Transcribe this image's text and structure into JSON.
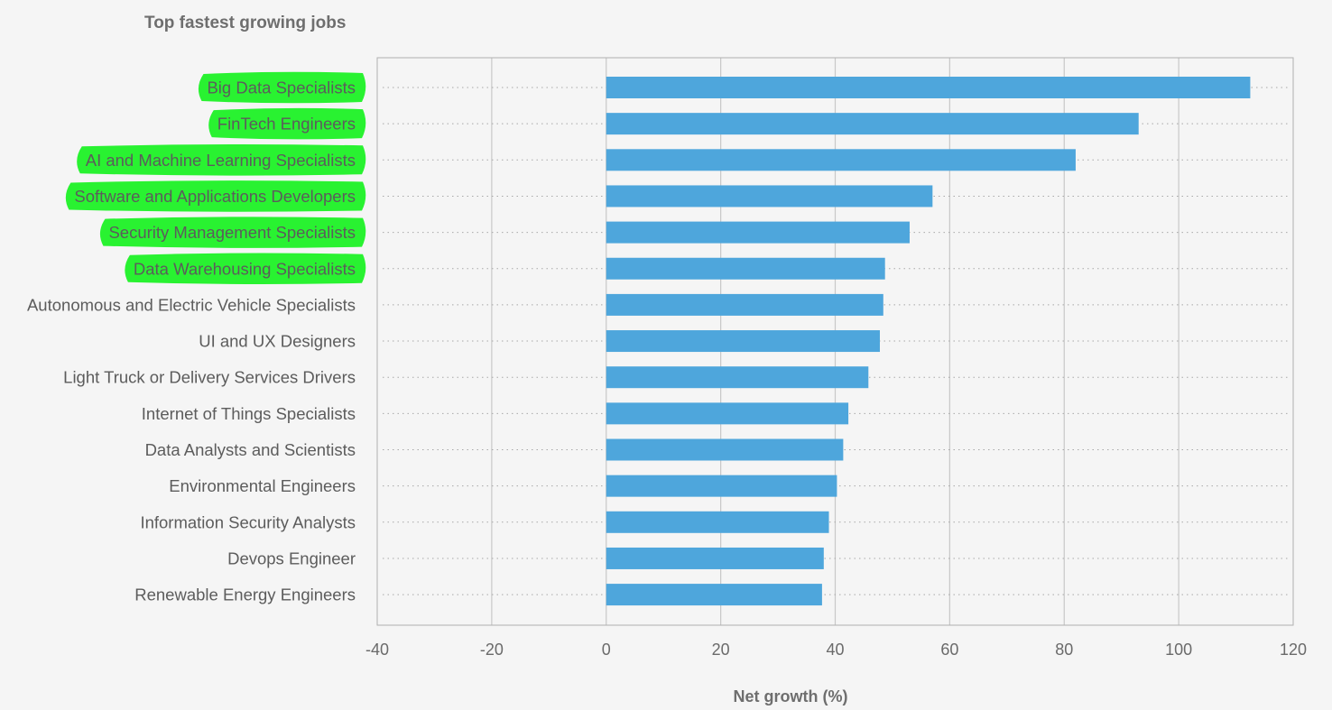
{
  "chart_data": {
    "type": "bar",
    "orientation": "horizontal",
    "title": "Top fastest growing jobs",
    "xlabel": "Net growth (%)",
    "ylabel": "",
    "xlim": [
      -40,
      120
    ],
    "x_ticks": [
      -40,
      -20,
      0,
      20,
      40,
      60,
      80,
      100,
      120
    ],
    "grid": "vertical",
    "categories": [
      "Big Data Specialists",
      "FinTech Engineers",
      "AI and Machine Learning Specialists",
      "Software and Applications Developers",
      "Security Management Specialists",
      "Data Warehousing Specialists",
      "Autonomous and Electric Vehicle Specialists",
      "UI and UX Designers",
      "Light Truck or Delivery Services Drivers",
      "Internet of Things Specialists",
      "Data Analysts and Scientists",
      "Environmental Engineers",
      "Information Security Analysts",
      "Devops Engineer",
      "Renewable Energy Engineers"
    ],
    "values": [
      112.5,
      93,
      82,
      57,
      53,
      48.7,
      48.4,
      47.8,
      45.8,
      42.3,
      41.4,
      40.3,
      38.9,
      38,
      37.7
    ],
    "highlighted_categories": [
      "Big Data Specialists",
      "FinTech Engineers",
      "AI and Machine Learning Specialists",
      "Software and Applications Developers",
      "Security Management Specialists",
      "Data Warehousing Specialists"
    ],
    "colors": {
      "bar": "#4ea6dc",
      "highlight": "#22f22a",
      "grid": "#c8c8c8",
      "plot_border": "#b0b0b0",
      "background": "#f5f5f5"
    }
  }
}
